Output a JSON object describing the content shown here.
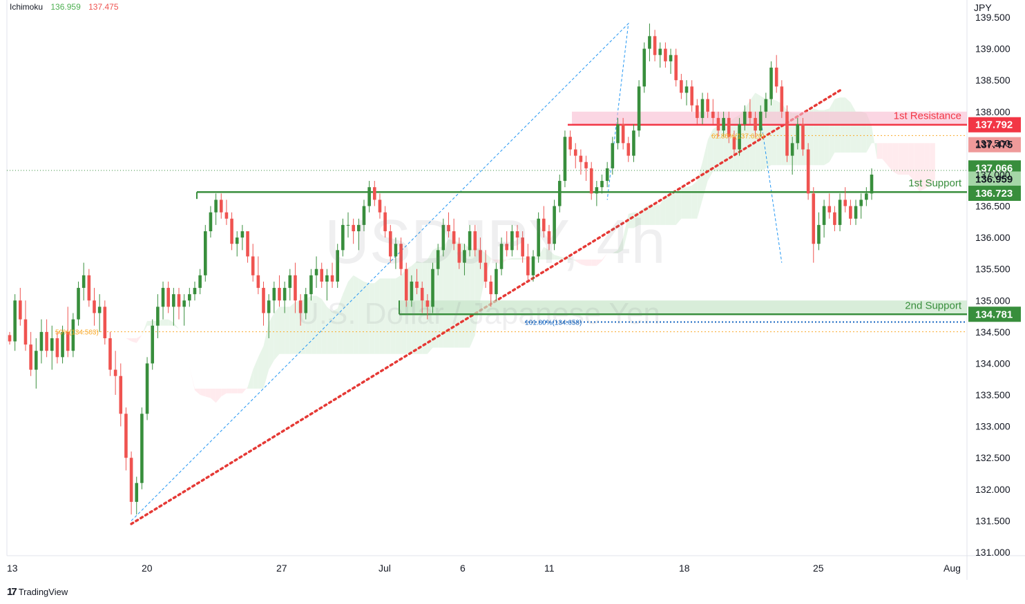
{
  "indicator": {
    "name": "Ichimoku",
    "value1": "136.959",
    "value2": "137.475"
  },
  "currency": "JPY",
  "watermark": {
    "symbol": "USDJPY, 4h",
    "description": "U.S. Dollar / Japanese Yen"
  },
  "brand": "TradingView",
  "chart_data": {
    "type": "candlestick",
    "ylim": [
      131.0,
      139.5
    ],
    "y_ticks": [
      "131.000",
      "131.500",
      "132.000",
      "132.500",
      "133.000",
      "133.500",
      "134.000",
      "134.500",
      "135.000",
      "135.500",
      "136.000",
      "136.500",
      "137.000",
      "137.500",
      "138.000",
      "138.500",
      "139.000",
      "139.500"
    ],
    "x_ticks": [
      "13",
      "20",
      "27",
      "Jul",
      "6",
      "11",
      "18",
      "25",
      "Aug"
    ],
    "levels": [
      {
        "label": "1st Resistance",
        "value": 137.792,
        "price_label": "137.792",
        "color": "#f23645"
      },
      {
        "label": "1st Support",
        "value": 136.723,
        "price_label": "136.723",
        "color": "#388e3c"
      },
      {
        "label": "2nd Support",
        "value": 134.781,
        "price_label": "134.781",
        "color": "#388e3c"
      }
    ],
    "price_badges": [
      {
        "value": 137.475,
        "label": "137.475",
        "color": "#ef9a9a"
      },
      {
        "value": 137.066,
        "label": "137.066",
        "color": "#388e3c"
      },
      {
        "value": 136.959,
        "label": "136.959",
        "color": "#a5d6a7"
      }
    ],
    "fib_labels": [
      {
        "text": "61.80%(137.620)",
        "value": 137.62,
        "color": "#f9a825"
      },
      {
        "text": "161.80%(134.658)",
        "value": 134.658,
        "color": "#1565c0"
      },
      {
        "text": "50%(134.503)",
        "value": 134.503,
        "color": "#f9a825"
      }
    ],
    "colors": {
      "up": "#388e3c",
      "down": "#ef5350",
      "cloud_up": "#e8f5e9",
      "cloud_down": "#ffebee"
    },
    "candles": [
      [
        134.45,
        134.5,
        134.3,
        134.35
      ],
      [
        134.35,
        135.1,
        134.2,
        135.0
      ],
      [
        135.0,
        135.2,
        134.6,
        134.7
      ],
      [
        134.7,
        135.0,
        134.2,
        134.3
      ],
      [
        134.3,
        134.5,
        133.8,
        133.9
      ],
      [
        133.9,
        134.4,
        133.6,
        134.2
      ],
      [
        134.2,
        134.7,
        134.0,
        134.5
      ],
      [
        134.5,
        134.7,
        134.1,
        134.2
      ],
      [
        134.2,
        134.6,
        133.9,
        134.4
      ],
      [
        134.4,
        134.5,
        134.0,
        134.1
      ],
      [
        134.1,
        134.6,
        134.0,
        134.5
      ],
      [
        134.5,
        134.9,
        134.1,
        134.2
      ],
      [
        134.2,
        134.8,
        134.1,
        134.7
      ],
      [
        134.7,
        135.3,
        134.6,
        135.2
      ],
      [
        135.2,
        135.6,
        135.0,
        135.4
      ],
      [
        135.4,
        135.5,
        134.9,
        135.0
      ],
      [
        135.0,
        135.2,
        134.6,
        134.8
      ],
      [
        134.8,
        135.1,
        134.5,
        134.9
      ],
      [
        134.9,
        135.0,
        134.3,
        134.4
      ],
      [
        134.4,
        134.5,
        133.8,
        133.9
      ],
      [
        133.9,
        134.2,
        133.5,
        133.8
      ],
      [
        133.8,
        134.0,
        133.0,
        133.2
      ],
      [
        133.2,
        133.3,
        132.3,
        132.5
      ],
      [
        132.5,
        132.6,
        131.6,
        131.8
      ],
      [
        131.8,
        132.2,
        131.6,
        132.1
      ],
      [
        132.1,
        133.3,
        132.0,
        133.2
      ],
      [
        133.2,
        134.1,
        133.1,
        134.0
      ],
      [
        134.0,
        134.7,
        133.9,
        134.6
      ],
      [
        134.6,
        135.1,
        134.4,
        134.9
      ],
      [
        134.9,
        135.3,
        134.7,
        135.2
      ],
      [
        135.2,
        135.3,
        134.8,
        134.9
      ],
      [
        134.9,
        135.2,
        134.6,
        135.1
      ],
      [
        135.1,
        135.2,
        134.7,
        134.9
      ],
      [
        134.9,
        135.1,
        134.6,
        135.0
      ],
      [
        135.0,
        135.2,
        134.9,
        135.1
      ],
      [
        135.1,
        135.3,
        135.0,
        135.2
      ],
      [
        135.2,
        135.5,
        135.1,
        135.4
      ],
      [
        135.4,
        136.2,
        135.3,
        136.1
      ],
      [
        136.1,
        136.5,
        136.0,
        136.4
      ],
      [
        136.4,
        136.7,
        136.2,
        136.6
      ],
      [
        136.6,
        136.7,
        136.3,
        136.4
      ],
      [
        136.4,
        136.6,
        136.2,
        136.3
      ],
      [
        136.3,
        136.4,
        135.8,
        135.9
      ],
      [
        135.9,
        136.1,
        135.7,
        136.0
      ],
      [
        136.0,
        136.2,
        135.8,
        136.1
      ],
      [
        136.1,
        136.1,
        135.6,
        135.7
      ],
      [
        135.7,
        135.9,
        135.3,
        135.4
      ],
      [
        135.4,
        135.7,
        135.1,
        135.2
      ],
      [
        135.2,
        135.3,
        134.6,
        134.8
      ],
      [
        134.8,
        135.1,
        134.4,
        135.0
      ],
      [
        135.0,
        135.3,
        134.8,
        135.2
      ],
      [
        135.2,
        135.4,
        134.9,
        135.0
      ],
      [
        135.0,
        135.3,
        134.8,
        135.2
      ],
      [
        135.2,
        135.5,
        135.0,
        135.4
      ],
      [
        135.4,
        135.6,
        134.8,
        135.0
      ],
      [
        135.0,
        135.1,
        134.6,
        134.8
      ],
      [
        134.8,
        135.2,
        134.7,
        135.1
      ],
      [
        135.1,
        135.5,
        135.0,
        135.4
      ],
      [
        135.4,
        135.7,
        135.2,
        135.5
      ],
      [
        135.5,
        135.6,
        135.2,
        135.3
      ],
      [
        135.3,
        135.5,
        135.0,
        135.4
      ],
      [
        135.4,
        135.6,
        135.2,
        135.3
      ],
      [
        135.3,
        135.9,
        135.2,
        135.8
      ],
      [
        135.8,
        136.3,
        135.7,
        136.2
      ],
      [
        136.2,
        136.4,
        136.0,
        136.2
      ],
      [
        136.2,
        136.3,
        135.9,
        136.1
      ],
      [
        136.1,
        136.3,
        135.8,
        136.2
      ],
      [
        136.2,
        136.6,
        136.1,
        136.5
      ],
      [
        136.5,
        136.9,
        136.4,
        136.8
      ],
      [
        136.8,
        136.9,
        136.5,
        136.6
      ],
      [
        136.6,
        136.7,
        136.3,
        136.4
      ],
      [
        136.4,
        136.5,
        136.0,
        136.1
      ],
      [
        136.1,
        136.2,
        135.6,
        135.7
      ],
      [
        135.7,
        136.0,
        135.5,
        135.9
      ],
      [
        135.9,
        136.0,
        135.4,
        135.5
      ],
      [
        135.5,
        135.6,
        134.9,
        135.0
      ],
      [
        135.0,
        135.4,
        134.9,
        135.3
      ],
      [
        135.3,
        135.5,
        135.1,
        135.2
      ],
      [
        135.2,
        135.3,
        134.8,
        135.0
      ],
      [
        135.0,
        135.1,
        134.7,
        134.9
      ],
      [
        134.9,
        135.6,
        134.8,
        135.5
      ],
      [
        135.5,
        135.9,
        135.4,
        135.8
      ],
      [
        135.8,
        136.3,
        135.7,
        136.2
      ],
      [
        136.2,
        136.4,
        136.0,
        136.1
      ],
      [
        136.1,
        136.3,
        135.8,
        135.9
      ],
      [
        135.9,
        136.0,
        135.5,
        135.6
      ],
      [
        135.6,
        135.9,
        135.4,
        135.8
      ],
      [
        135.8,
        136.2,
        135.7,
        136.1
      ],
      [
        136.1,
        136.2,
        135.7,
        135.8
      ],
      [
        135.8,
        136.0,
        135.5,
        135.6
      ],
      [
        135.6,
        135.8,
        135.2,
        135.3
      ],
      [
        135.3,
        135.4,
        134.9,
        135.1
      ],
      [
        135.1,
        135.6,
        135.0,
        135.5
      ],
      [
        135.5,
        136.0,
        135.4,
        135.9
      ],
      [
        135.9,
        136.1,
        135.7,
        135.8
      ],
      [
        135.8,
        136.2,
        135.7,
        136.1
      ],
      [
        136.1,
        136.2,
        135.8,
        136.0
      ],
      [
        136.0,
        136.1,
        135.6,
        135.7
      ],
      [
        135.7,
        135.9,
        135.3,
        135.4
      ],
      [
        135.4,
        135.8,
        135.3,
        135.7
      ],
      [
        135.7,
        136.4,
        135.6,
        136.3
      ],
      [
        136.3,
        136.5,
        136.0,
        136.1
      ],
      [
        136.1,
        136.2,
        135.8,
        135.9
      ],
      [
        135.9,
        136.6,
        135.8,
        136.5
      ],
      [
        136.5,
        137.0,
        136.4,
        136.9
      ],
      [
        136.9,
        137.7,
        136.8,
        137.6
      ],
      [
        137.6,
        137.7,
        137.3,
        137.4
      ],
      [
        137.4,
        137.5,
        137.1,
        137.3
      ],
      [
        137.3,
        137.4,
        137.0,
        137.2
      ],
      [
        137.2,
        137.3,
        136.9,
        137.1
      ],
      [
        137.1,
        137.2,
        136.6,
        136.7
      ],
      [
        136.7,
        136.9,
        136.5,
        136.8
      ],
      [
        136.8,
        137.0,
        136.7,
        136.9
      ],
      [
        136.9,
        137.2,
        136.8,
        137.1
      ],
      [
        137.1,
        137.6,
        137.0,
        137.5
      ],
      [
        137.5,
        137.9,
        137.4,
        137.8
      ],
      [
        137.8,
        137.9,
        137.4,
        137.5
      ],
      [
        137.5,
        137.6,
        137.2,
        137.3
      ],
      [
        137.3,
        137.8,
        137.2,
        137.7
      ],
      [
        137.7,
        138.5,
        137.6,
        138.4
      ],
      [
        138.4,
        139.1,
        138.3,
        139.0
      ],
      [
        139.0,
        139.4,
        138.8,
        139.2
      ],
      [
        139.2,
        139.3,
        138.8,
        138.9
      ],
      [
        138.9,
        139.1,
        138.7,
        139.0
      ],
      [
        139.0,
        139.1,
        138.7,
        138.8
      ],
      [
        138.8,
        139.0,
        138.6,
        138.9
      ],
      [
        138.9,
        139.0,
        138.4,
        138.5
      ],
      [
        138.5,
        138.6,
        138.2,
        138.3
      ],
      [
        138.3,
        138.5,
        138.1,
        138.4
      ],
      [
        138.4,
        138.5,
        138.0,
        138.1
      ],
      [
        138.1,
        138.2,
        137.8,
        137.9
      ],
      [
        137.9,
        138.3,
        137.8,
        138.2
      ],
      [
        138.2,
        138.3,
        137.9,
        138.0
      ],
      [
        138.0,
        138.2,
        137.8,
        137.9
      ],
      [
        137.9,
        138.0,
        137.6,
        137.7
      ],
      [
        137.7,
        138.0,
        137.6,
        137.9
      ],
      [
        137.9,
        138.0,
        137.5,
        137.6
      ],
      [
        137.6,
        137.7,
        137.3,
        137.4
      ],
      [
        137.4,
        137.9,
        137.3,
        137.8
      ],
      [
        137.8,
        138.1,
        137.7,
        138.0
      ],
      [
        138.0,
        138.2,
        137.8,
        137.9
      ],
      [
        137.9,
        138.0,
        137.6,
        137.7
      ],
      [
        137.7,
        138.1,
        137.6,
        138.0
      ],
      [
        138.0,
        138.3,
        137.9,
        138.2
      ],
      [
        138.2,
        138.8,
        138.1,
        138.7
      ],
      [
        138.7,
        138.9,
        138.3,
        138.4
      ],
      [
        138.4,
        138.5,
        137.9,
        138.0
      ],
      [
        138.0,
        138.1,
        137.2,
        137.3
      ],
      [
        137.3,
        137.6,
        137.0,
        137.5
      ],
      [
        137.5,
        137.9,
        137.4,
        137.8
      ],
      [
        137.8,
        137.9,
        137.3,
        137.4
      ],
      [
        137.4,
        137.5,
        136.6,
        136.7
      ],
      [
        136.7,
        136.8,
        135.6,
        135.9
      ],
      [
        135.9,
        136.4,
        135.8,
        136.2
      ],
      [
        136.2,
        136.6,
        136.0,
        136.5
      ],
      [
        136.5,
        136.7,
        136.3,
        136.4
      ],
      [
        136.4,
        136.5,
        136.1,
        136.2
      ],
      [
        136.2,
        136.7,
        136.1,
        136.6
      ],
      [
        136.6,
        136.8,
        136.4,
        136.5
      ],
      [
        136.5,
        136.6,
        136.2,
        136.3
      ],
      [
        136.3,
        136.6,
        136.2,
        136.5
      ],
      [
        136.5,
        136.7,
        136.3,
        136.6
      ],
      [
        136.6,
        136.8,
        136.5,
        136.7
      ],
      [
        136.7,
        137.1,
        136.6,
        137.0
      ]
    ]
  }
}
